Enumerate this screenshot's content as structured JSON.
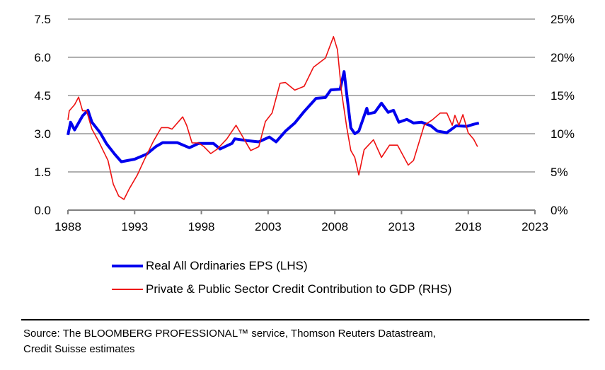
{
  "chart_data": {
    "type": "line",
    "title": "",
    "xlabel": "",
    "ylabel_left": "",
    "ylabel_right": "",
    "xlim": [
      1988,
      2023
    ],
    "ylim_left": [
      0,
      7.5
    ],
    "ylim_right": [
      0,
      25
    ],
    "x_ticks": [
      "1988",
      "1993",
      "1998",
      "2003",
      "2008",
      "2013",
      "2018",
      "2023"
    ],
    "y_ticks_left": [
      "0.0",
      "1.5",
      "3.0",
      "4.5",
      "6.0",
      "7.5"
    ],
    "y_ticks_right": [
      "0%",
      "5%",
      "10%",
      "15%",
      "20%",
      "25%"
    ],
    "grid": "horizontal",
    "legend_position": "bottom",
    "series": [
      {
        "name": "Real All Ordinaries EPS (LHS)",
        "axis": "left",
        "color": "#0000ee",
        "x": [
          1988.0,
          1988.2,
          1988.5,
          1989.1,
          1989.5,
          1989.8,
          1990.4,
          1990.9,
          1991.5,
          1992.0,
          1993.0,
          1993.9,
          1994.6,
          1995.1,
          1996.2,
          1997.1,
          1997.8,
          1998.9,
          1999.4,
          2000.3,
          2000.5,
          2001.4,
          2002.3,
          2003.1,
          2003.6,
          2004.3,
          2005.0,
          2005.7,
          2006.6,
          2007.3,
          2007.7,
          2008.4,
          2008.7,
          2008.9,
          2009.2,
          2009.5,
          2009.8,
          2010.4,
          2010.5,
          2011.0,
          2011.5,
          2012.0,
          2012.4,
          2012.8,
          2013.4,
          2013.9,
          2014.5,
          2015.2,
          2015.7,
          2016.4,
          2017.1,
          2017.9,
          2018.4,
          2018.8
        ],
        "values": [
          2.95,
          3.45,
          3.15,
          3.7,
          3.92,
          3.45,
          3.05,
          2.6,
          2.2,
          1.9,
          2.0,
          2.2,
          2.5,
          2.65,
          2.65,
          2.45,
          2.62,
          2.62,
          2.4,
          2.62,
          2.8,
          2.73,
          2.68,
          2.87,
          2.68,
          3.1,
          3.42,
          3.87,
          4.39,
          4.42,
          4.72,
          4.75,
          5.44,
          4.53,
          3.23,
          3.0,
          3.1,
          4.0,
          3.78,
          3.84,
          4.2,
          3.84,
          3.92,
          3.45,
          3.56,
          3.42,
          3.45,
          3.31,
          3.1,
          3.04,
          3.31,
          3.29,
          3.37,
          3.42
        ]
      },
      {
        "name": "Private & Public Sector Credit Contribution to GDP (RHS)",
        "axis": "right",
        "color": "#ee1111",
        "x": [
          1988.0,
          1988.1,
          1988.5,
          1988.8,
          1989.1,
          1989.4,
          1989.8,
          1990.3,
          1991.0,
          1991.4,
          1991.8,
          1992.2,
          1992.6,
          1993.2,
          1993.7,
          1994.4,
          1995.0,
          1995.5,
          1995.8,
          1996.6,
          1996.9,
          1997.3,
          1997.8,
          1998.2,
          1998.7,
          1999.2,
          1999.9,
          2000.6,
          2001.2,
          2001.7,
          2002.3,
          2002.8,
          2003.3,
          2003.9,
          2004.3,
          2005.0,
          2005.7,
          2006.4,
          2007.3,
          2007.9,
          2008.2,
          2008.5,
          2008.9,
          2009.2,
          2009.5,
          2009.8,
          2010.2,
          2010.9,
          2011.5,
          2012.1,
          2012.7,
          2013.5,
          2013.9,
          2014.7,
          2015.3,
          2015.9,
          2016.4,
          2016.8,
          2017.0,
          2017.3,
          2017.6,
          2018.0,
          2018.4,
          2018.7
        ],
        "values": [
          11.8,
          13.0,
          13.8,
          14.8,
          13.0,
          13.0,
          10.6,
          9.0,
          6.5,
          3.4,
          1.85,
          1.4,
          2.8,
          4.6,
          6.5,
          9.0,
          10.8,
          10.8,
          10.6,
          12.2,
          11.1,
          8.8,
          8.8,
          8.3,
          7.4,
          8.0,
          9.3,
          11.1,
          9.3,
          7.8,
          8.3,
          11.6,
          12.7,
          16.6,
          16.7,
          15.7,
          16.2,
          18.7,
          19.9,
          22.7,
          21.0,
          15.5,
          10.8,
          7.8,
          6.9,
          4.6,
          7.9,
          9.2,
          6.9,
          8.5,
          8.5,
          5.9,
          6.5,
          11.1,
          11.8,
          12.7,
          12.7,
          11.1,
          12.4,
          11.1,
          12.5,
          10.1,
          9.3,
          8.3
        ]
      }
    ]
  },
  "legend": {
    "items": [
      {
        "label": "Real All Ordinaries EPS (LHS)",
        "color": "#0000ee"
      },
      {
        "label": "Private & Public Sector Credit Contribution to GDP (RHS)",
        "color": "#ee1111"
      }
    ]
  },
  "source": {
    "line1": "Source: The BLOOMBERG PROFESSIONAL™ service, Thomson Reuters Datastream,",
    "line2": "Credit Suisse estimates"
  }
}
